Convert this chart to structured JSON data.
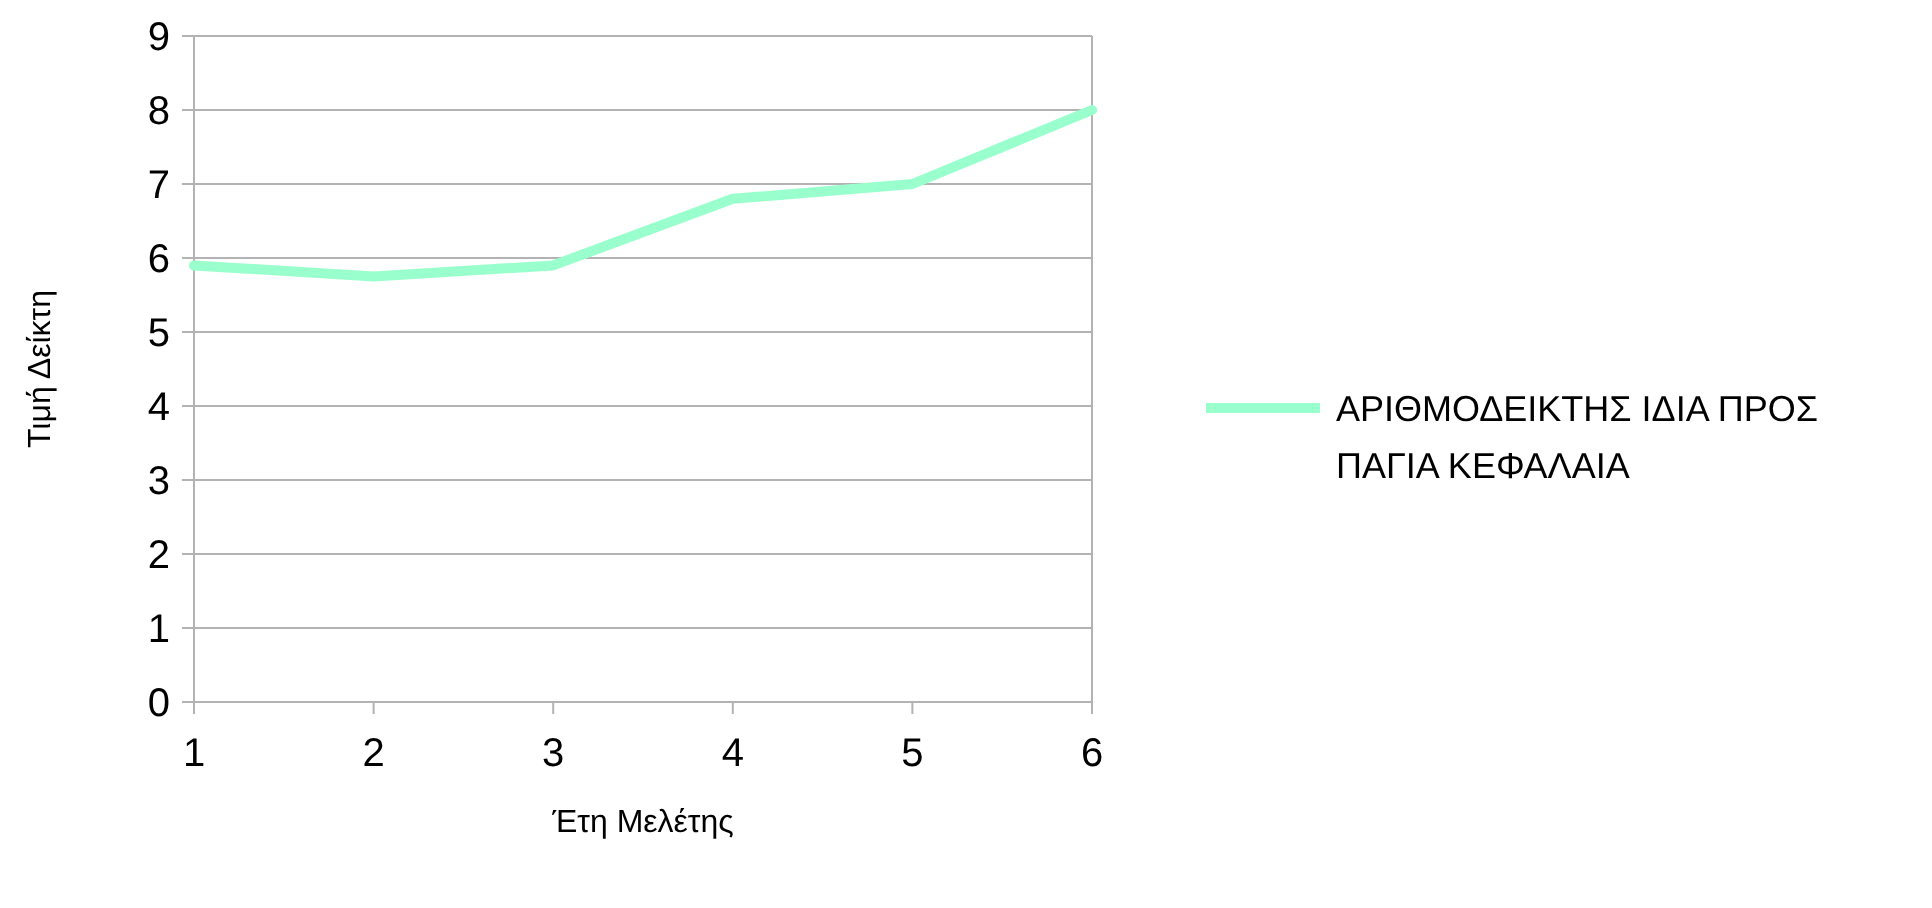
{
  "chart_data": {
    "type": "line",
    "xlabel": "Έτη Μελέτης",
    "ylabel": "Τιμή Δείκτη",
    "x": [
      1,
      2,
      3,
      4,
      5,
      6
    ],
    "series": [
      {
        "name": "ΑΡΙΘΜΟΔΕΙΚΤΗΣ ΙΔΙΑ ΠΡΟΣ ΠΑΓΙΑ ΚΕΦΑΛΑΙΑ",
        "color": "#99ffcc",
        "values": [
          5.9,
          5.75,
          5.9,
          6.8,
          7.0,
          8.0
        ]
      }
    ],
    "xlim": [
      1,
      6
    ],
    "xticks": [
      1,
      2,
      3,
      4,
      5,
      6
    ],
    "ylim": [
      0,
      9
    ],
    "yticks": [
      0,
      1,
      2,
      3,
      4,
      5,
      6,
      7,
      8,
      9
    ],
    "grid": "y",
    "legend": "right",
    "marker": "none",
    "line_style": "solid"
  }
}
